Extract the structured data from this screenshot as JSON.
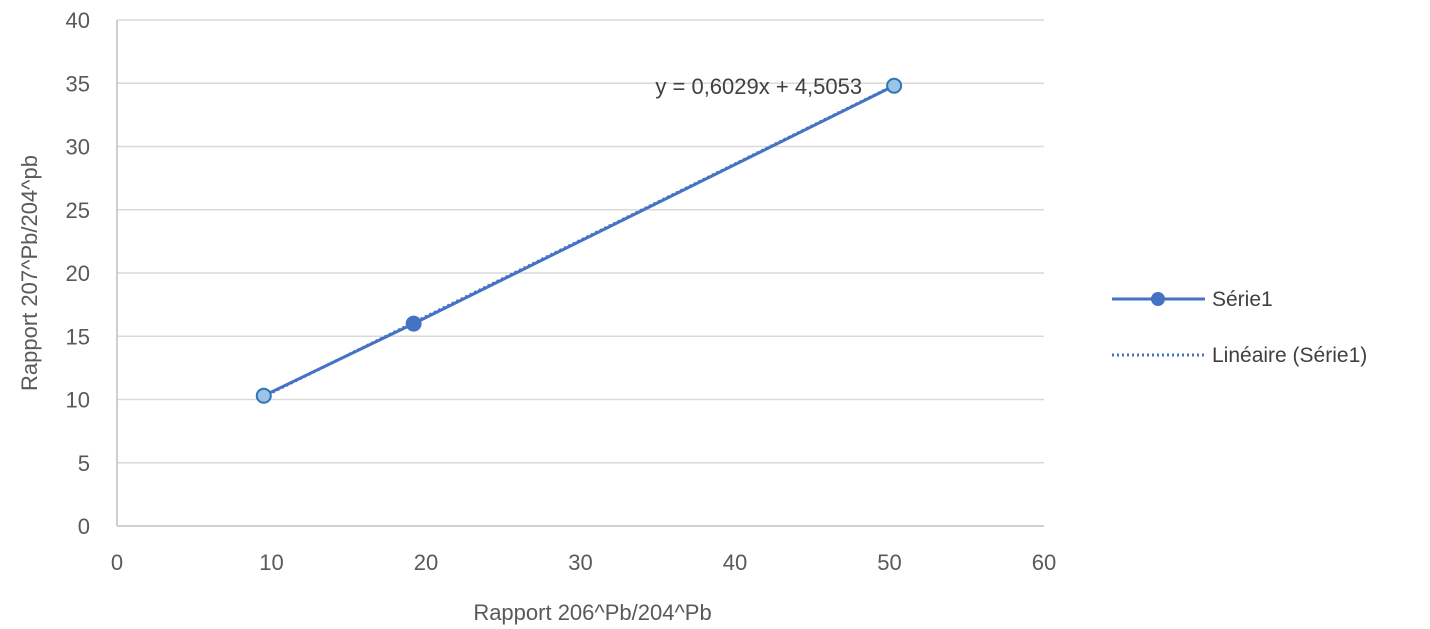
{
  "chart_data": {
    "type": "scatter",
    "xlabel": "Rapport 206^Pb/204^Pb",
    "ylabel": "Rapport 207^Pb/204^pb",
    "xlim": [
      0,
      60
    ],
    "ylim": [
      0,
      40
    ],
    "x_ticks": [
      0,
      10,
      20,
      30,
      40,
      50,
      60
    ],
    "y_ticks": [
      0,
      5,
      10,
      15,
      20,
      25,
      30,
      35,
      40
    ],
    "grid": "horizontal",
    "legend_position": "right",
    "series": [
      {
        "name": "Série1",
        "color": "#4472c4",
        "style": "line-with-markers",
        "points": [
          {
            "x": 9.5,
            "y": 10.3
          },
          {
            "x": 19.2,
            "y": 16.0
          },
          {
            "x": 50.3,
            "y": 34.8
          }
        ]
      }
    ],
    "trendline": {
      "name": "Linéaire (Série1)",
      "style": "dotted",
      "color": "#4472c4",
      "slope": 0.6029,
      "intercept": 4.5053,
      "x_range": [
        9.5,
        50.3
      ],
      "equation_label": "y = 0,6029x + 4,5053"
    }
  }
}
